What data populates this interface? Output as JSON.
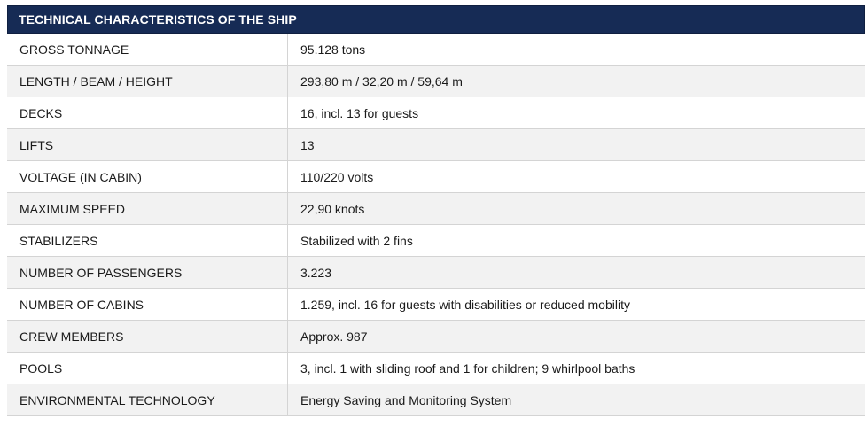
{
  "table": {
    "title": "TECHNICAL CHARACTERISTICS OF THE SHIP",
    "rows": [
      {
        "label": "GROSS TONNAGE",
        "value": "95.128 tons"
      },
      {
        "label": "LENGTH / BEAM / HEIGHT",
        "value": "293,80 m / 32,20 m / 59,64 m"
      },
      {
        "label": "DECKS",
        "value": "16, incl. 13 for guests"
      },
      {
        "label": "LIFTS",
        "value": "13"
      },
      {
        "label": "VOLTAGE (IN CABIN)",
        "value": "110/220 volts"
      },
      {
        "label": "MAXIMUM SPEED",
        "value": "22,90 knots"
      },
      {
        "label": "STABILIZERS",
        "value": "Stabilized with 2 fins"
      },
      {
        "label": "NUMBER OF PASSENGERS",
        "value": "3.223"
      },
      {
        "label": "NUMBER OF CABINS",
        "value": "1.259, incl. 16 for guests with disabilities or reduced mobility"
      },
      {
        "label": "CREW MEMBERS",
        "value": "Approx. 987"
      },
      {
        "label": "POOLS",
        "value": "3, incl. 1 with sliding roof and 1 for children; 9 whirlpool baths"
      },
      {
        "label": "ENVIRONMENTAL TECHNOLOGY",
        "value": "Energy Saving and Monitoring System"
      }
    ]
  },
  "colors": {
    "header_bg": "#162b55",
    "header_text": "#ffffff",
    "alt_row_bg": "#f2f2f2",
    "border": "#d4d4d4"
  }
}
